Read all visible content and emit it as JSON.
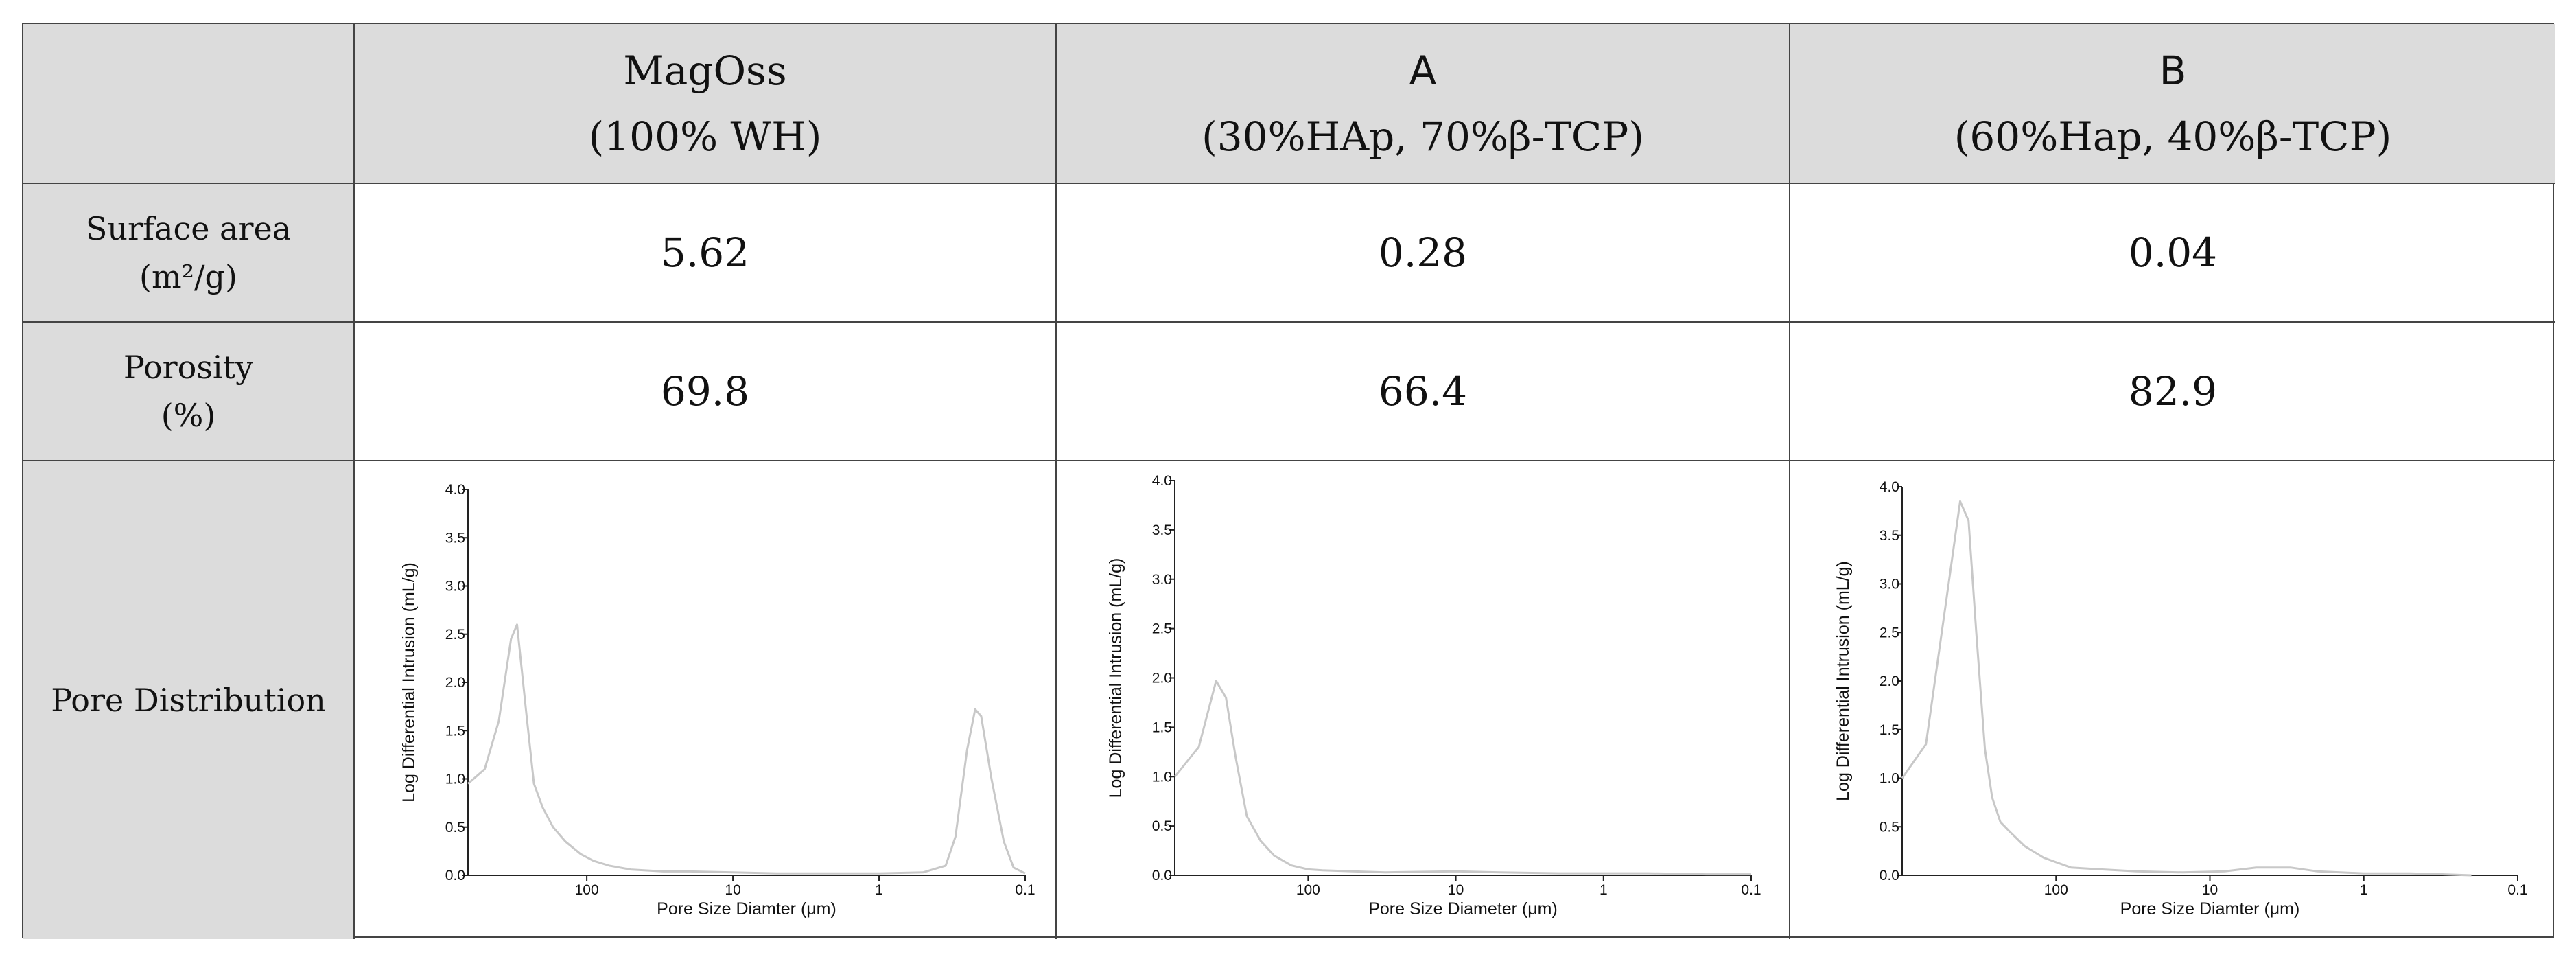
{
  "table": {
    "headers": [
      {
        "line1": "",
        "line2": ""
      },
      {
        "line1": "MagOss",
        "line2": "(100% WH)"
      },
      {
        "line1": "A",
        "line2": "(30%HAp, 70%β-TCP)"
      },
      {
        "line1": "B",
        "line2": "(60%Hap, 40%β-TCP)"
      }
    ],
    "rows": [
      {
        "label1": "Surface area",
        "label2": "(m²/g)",
        "values": [
          "5.62",
          "0.28",
          "0.04"
        ]
      },
      {
        "label1": "Porosity",
        "label2": "(%)",
        "values": [
          "69.8",
          "66.4",
          "82.9"
        ]
      },
      {
        "label1": "Pore Distribution",
        "label2": ""
      }
    ]
  },
  "chart_data": [
    {
      "type": "line",
      "xlabel": "Pore Size Diamter (μm)",
      "ylabel": "Log Differential Intrusion (mL/g)",
      "xscale": "log-reversed",
      "xlim": [
        650,
        0.1
      ],
      "ylim": [
        0,
        4.0
      ],
      "xticks": [
        "100",
        "10",
        "1",
        "0.1"
      ],
      "yticks": [
        "0.0",
        "0.5",
        "1.0",
        "1.5",
        "2.0",
        "2.5",
        "3.0",
        "3.5",
        "4.0"
      ],
      "color": "#c8c8c8",
      "series": [
        {
          "x": [
            650,
            500,
            400,
            330,
            300,
            260,
            230,
            200,
            170,
            140,
            110,
            90,
            70,
            50,
            30,
            20,
            10,
            5,
            2,
            1,
            0.5,
            0.35,
            0.3,
            0.25,
            0.22,
            0.2,
            0.17,
            0.14,
            0.12,
            0.1
          ],
          "y": [
            0.95,
            1.1,
            1.6,
            2.45,
            2.6,
            1.7,
            0.95,
            0.7,
            0.5,
            0.35,
            0.22,
            0.15,
            0.1,
            0.06,
            0.04,
            0.04,
            0.03,
            0.02,
            0.02,
            0.02,
            0.03,
            0.1,
            0.4,
            1.3,
            1.72,
            1.65,
            1.0,
            0.35,
            0.08,
            0.02
          ]
        }
      ]
    },
    {
      "type": "line",
      "xlabel": "Pore Size Diameter (μm)",
      "ylabel": "Log Differential Intrusion (mL/g)",
      "xscale": "log-reversed",
      "xlim": [
        800,
        0.1
      ],
      "ylim": [
        0,
        4.0
      ],
      "xticks": [
        "100",
        "10",
        "1",
        "0.1"
      ],
      "yticks": [
        "0.0",
        "0.5",
        "1.0",
        "1.5",
        "2.0",
        "2.5",
        "3.0",
        "3.5",
        "4.0"
      ],
      "color": "#c8c8c8",
      "series": [
        {
          "x": [
            800,
            550,
            420,
            360,
            310,
            260,
            210,
            170,
            130,
            100,
            80,
            50,
            30,
            10,
            5,
            2,
            1,
            0.5,
            0.2,
            0.1
          ],
          "y": [
            1.0,
            1.3,
            1.97,
            1.8,
            1.2,
            0.6,
            0.35,
            0.2,
            0.1,
            0.06,
            0.05,
            0.04,
            0.03,
            0.04,
            0.03,
            0.02,
            0.02,
            0.02,
            0.01,
            0.01
          ]
        }
      ]
    },
    {
      "type": "line",
      "xlabel": "Pore Size Diamter (μm)",
      "ylabel": "Log Differential Intrusion (mL/g)",
      "xscale": "log-reversed",
      "xlim": [
        1000,
        0.1
      ],
      "ylim": [
        0,
        4.0
      ],
      "xticks": [
        "100",
        "10",
        "1",
        "0.1"
      ],
      "yticks": [
        "0.0",
        "0.5",
        "1.0",
        "1.5",
        "2.0",
        "2.5",
        "3.0",
        "3.5",
        "4.0"
      ],
      "color": "#c8c8c8",
      "series": [
        {
          "x": [
            1000,
            700,
            520,
            420,
            370,
            330,
            290,
            260,
            230,
            200,
            160,
            120,
            80,
            50,
            30,
            15,
            8,
            5,
            3,
            2,
            1,
            0.5,
            0.3,
            0.2
          ],
          "y": [
            1.0,
            1.35,
            2.8,
            3.85,
            3.65,
            2.5,
            1.3,
            0.8,
            0.55,
            0.45,
            0.3,
            0.18,
            0.08,
            0.06,
            0.04,
            0.03,
            0.04,
            0.08,
            0.08,
            0.04,
            0.02,
            0.02,
            0.01,
            0.0
          ]
        }
      ]
    }
  ]
}
